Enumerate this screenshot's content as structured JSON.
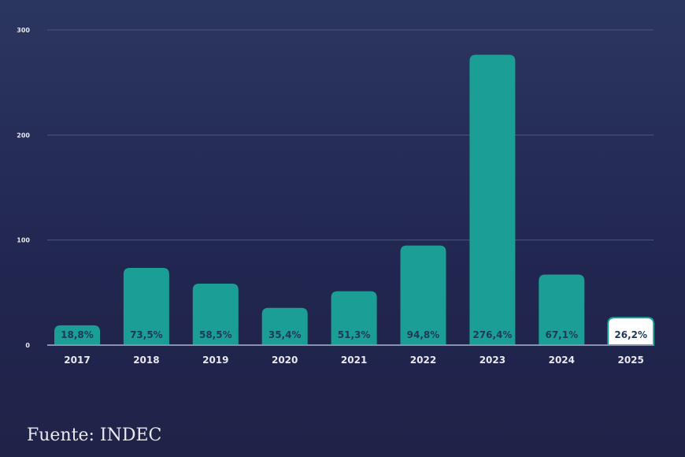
{
  "chart_data": {
    "type": "bar",
    "categories": [
      "2017",
      "2018",
      "2019",
      "2020",
      "2021",
      "2022",
      "2023",
      "2024",
      "2025"
    ],
    "values": [
      18.8,
      73.5,
      58.5,
      35.4,
      51.3,
      94.8,
      276.4,
      67.1,
      26.2
    ],
    "data_labels": [
      "18,8%",
      "73,5%",
      "58,5%",
      "35,4%",
      "51,3%",
      "94,8%",
      "276,4%",
      "67,1%",
      "26,2%"
    ],
    "ylim": [
      0,
      300
    ],
    "yticks": [
      "0",
      "100",
      "200",
      "300"
    ],
    "grid": true,
    "colors": {
      "bar": "#1a9e96",
      "highlight": "#ffffff",
      "highlight_border": "#1a9e96",
      "label": "#1e3a5a",
      "grid": "#4a5580",
      "text": "#e8e8ee"
    }
  },
  "source": "Fuente: INDEC"
}
